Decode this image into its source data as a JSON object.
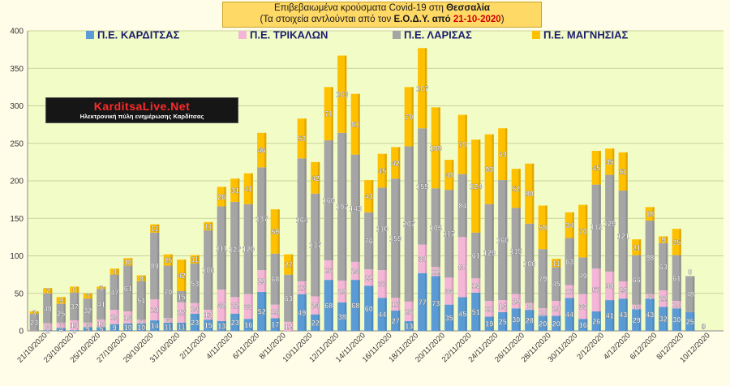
{
  "header": {
    "line1_prefix": "Επιβεβαιωμένα κρούσματα Covid-19 στη ",
    "line1_region": "Θεσσαλία",
    "line2_prefix": "(Τα στοιχεία αντλούνται από τον ",
    "line2_source": "Ε.Ο.Δ.Υ.",
    "line2_mid": " από ",
    "line2_date": "21-10-2020",
    "line2_suffix": ")"
  },
  "logo": {
    "name": "KarditsaLive.Net",
    "tagline": "Ηλεκτρονική πύλη ενημέρωσης Καρδίτσας"
  },
  "colors": {
    "karditsa": "#5b9bd5",
    "trikala": "#f4b6d6",
    "larisa": "#a5a5a5",
    "magnisia": "#ffc000",
    "plot_bg": "#f2fcc7",
    "page_bg": "#fffde7"
  },
  "chart_data": {
    "type": "bar",
    "stacked": true,
    "ylim": [
      0,
      400
    ],
    "yticks": [
      0,
      50,
      100,
      150,
      200,
      250,
      300,
      350,
      400
    ],
    "grid": true,
    "legend_position": "top",
    "x_tick_labels": [
      "21/10/2020",
      "23/10/2020",
      "25/10/2020",
      "27/10/2020",
      "29/10/2020",
      "31/10/2020",
      "2/11/2020",
      "4/11/2020",
      "6/11/2020",
      "8/11/2020",
      "10/11/2020",
      "12/11/2020",
      "14/11/2020",
      "16/11/2020",
      "18/11/2020",
      "20/11/2020",
      "22/11/2020",
      "24/11/2020",
      "26/11/2020",
      "28/11/2020",
      "30/11/2020",
      "2/12/2020",
      "4/12/2020",
      "6/12/2020",
      "8/12/2020",
      "10/12/2020"
    ],
    "series": [
      {
        "name": "Π.Ε. ΚΑΡΔΙΤΣΑΣ",
        "values": [
          0,
          1,
          4,
          1,
          5,
          5,
          9,
          10,
          10,
          14,
          11,
          11,
          23,
          15,
          13,
          23,
          16,
          52,
          17,
          0,
          49,
          22,
          68,
          38,
          68,
          60,
          44,
          27,
          13,
          77,
          73,
          35,
          45,
          51,
          19,
          25,
          30,
          28,
          20,
          20,
          44,
          16,
          26,
          41,
          43,
          29,
          43,
          32,
          30,
          25,
          0
        ]
      },
      {
        "name": "Π.Ε. ΤΡΙΚΑΛΩΝ",
        "values": [
          0,
          9,
          7,
          13,
          6,
          10,
          19,
          16,
          5,
          28,
          6,
          27,
          14,
          13,
          42,
          22,
          33,
          29,
          18,
          12,
          17,
          24,
          26,
          29,
          24,
          22,
          37,
          17,
          26,
          38,
          12,
          36,
          80,
          19,
          21,
          16,
          19,
          9,
          10,
          20,
          17,
          33,
          57,
          38,
          23,
          6,
          6,
          22,
          10,
          0,
          0
        ]
      },
      {
        "name": "Π.Ε. ΛΑΡΙΣΑΣ",
        "values": [
          23,
          40,
          25,
          37,
          32,
          41,
          47,
          61,
          51,
          89,
          70,
          15,
          53,
          106,
          111,
          127,
          120,
          137,
          68,
          63,
          164,
          137,
          160,
          197,
          143,
          76,
          110,
          159,
          207,
          155,
          105,
          117,
          84,
          61,
          129,
          160,
          115,
          106,
          79,
          45,
          63,
          49,
          112,
          129,
          121,
          66,
          98,
          63,
          61,
          48,
          0
        ]
      },
      {
        "name": "Π.Ε. ΜΑΓΝΗΣΙΑΣ",
        "values": [
          3,
          7,
          9,
          8,
          7,
          3,
          8,
          10,
          8,
          11,
          15,
          42,
          11,
          11,
          26,
          31,
          41,
          46,
          59,
          27,
          53,
          42,
          71,
          103,
          81,
          43,
          45,
          42,
          79,
          107,
          108,
          40,
          79,
          124,
          93,
          69,
          52,
          80,
          58,
          11,
          34,
          70,
          45,
          35,
          51,
          21,
          18,
          9,
          35,
          0,
          0
        ]
      }
    ]
  }
}
